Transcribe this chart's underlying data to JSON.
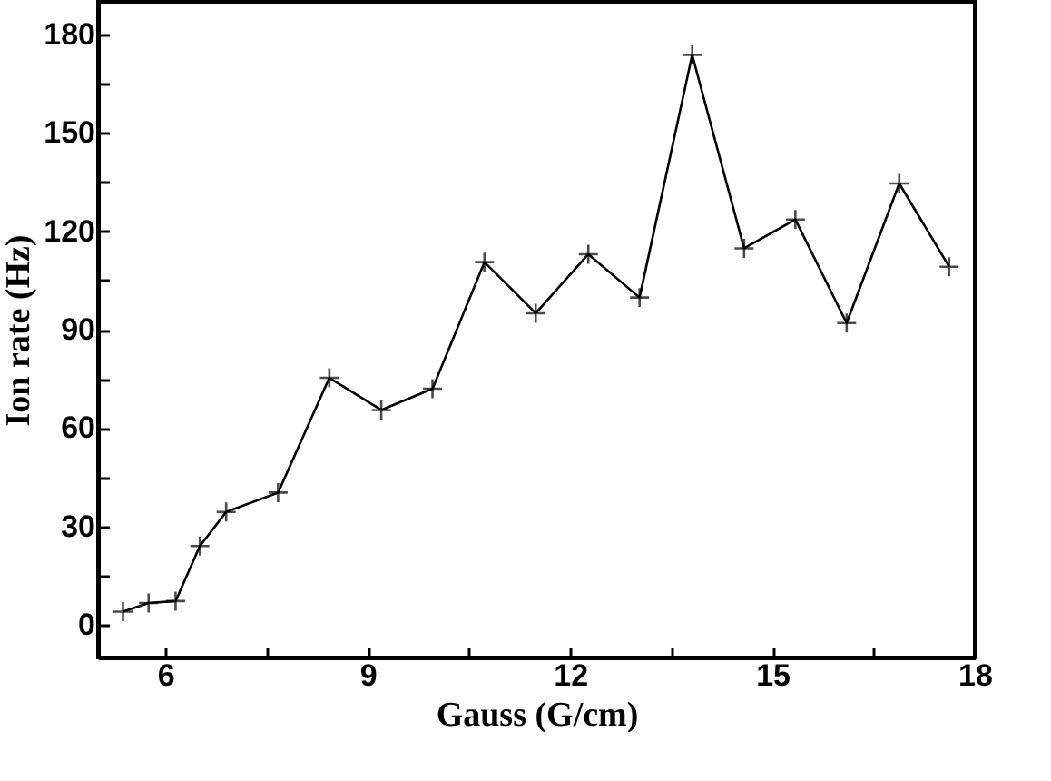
{
  "chart_data": {
    "type": "line",
    "xlabel": "Gauss (G/cm)",
    "ylabel": "Ion rate (Hz)",
    "x": [
      5.37,
      5.75,
      6.15,
      6.51,
      6.9,
      7.67,
      8.43,
      9.2,
      9.96,
      10.73,
      11.49,
      12.27,
      13.03,
      13.81,
      14.58,
      15.34,
      16.1,
      16.88,
      17.62
    ],
    "series": [
      {
        "color": "#000000",
        "values": [
          4,
          6.6,
          7.2,
          24,
          34.4,
          40.3,
          75.3,
          65.5,
          72,
          110.6,
          95,
          113,
          99.8,
          173.8,
          114.8,
          123.6,
          92,
          134.6,
          109.2
        ]
      }
    ],
    "xlim": [
      5.0,
      18
    ],
    "ylim": [
      -10,
      190
    ],
    "xticks": [
      6,
      {
        "value": 7.5,
        "label": null
      },
      9,
      {
        "value": 10.5,
        "label": null
      },
      12,
      {
        "value": 13.5,
        "label": null
      },
      15,
      {
        "value": 16.5,
        "label": null
      },
      18
    ],
    "yticks": [
      0,
      {
        "value": 15,
        "label": null
      },
      30,
      {
        "value": 45,
        "label": null
      },
      60,
      {
        "value": 75,
        "label": null
      },
      90,
      {
        "value": 105,
        "label": null
      },
      120,
      {
        "value": 135,
        "label": null
      },
      150,
      {
        "value": 165,
        "label": null
      },
      180
    ],
    "marker": "cross",
    "line_style": "solid",
    "grid": false
  }
}
